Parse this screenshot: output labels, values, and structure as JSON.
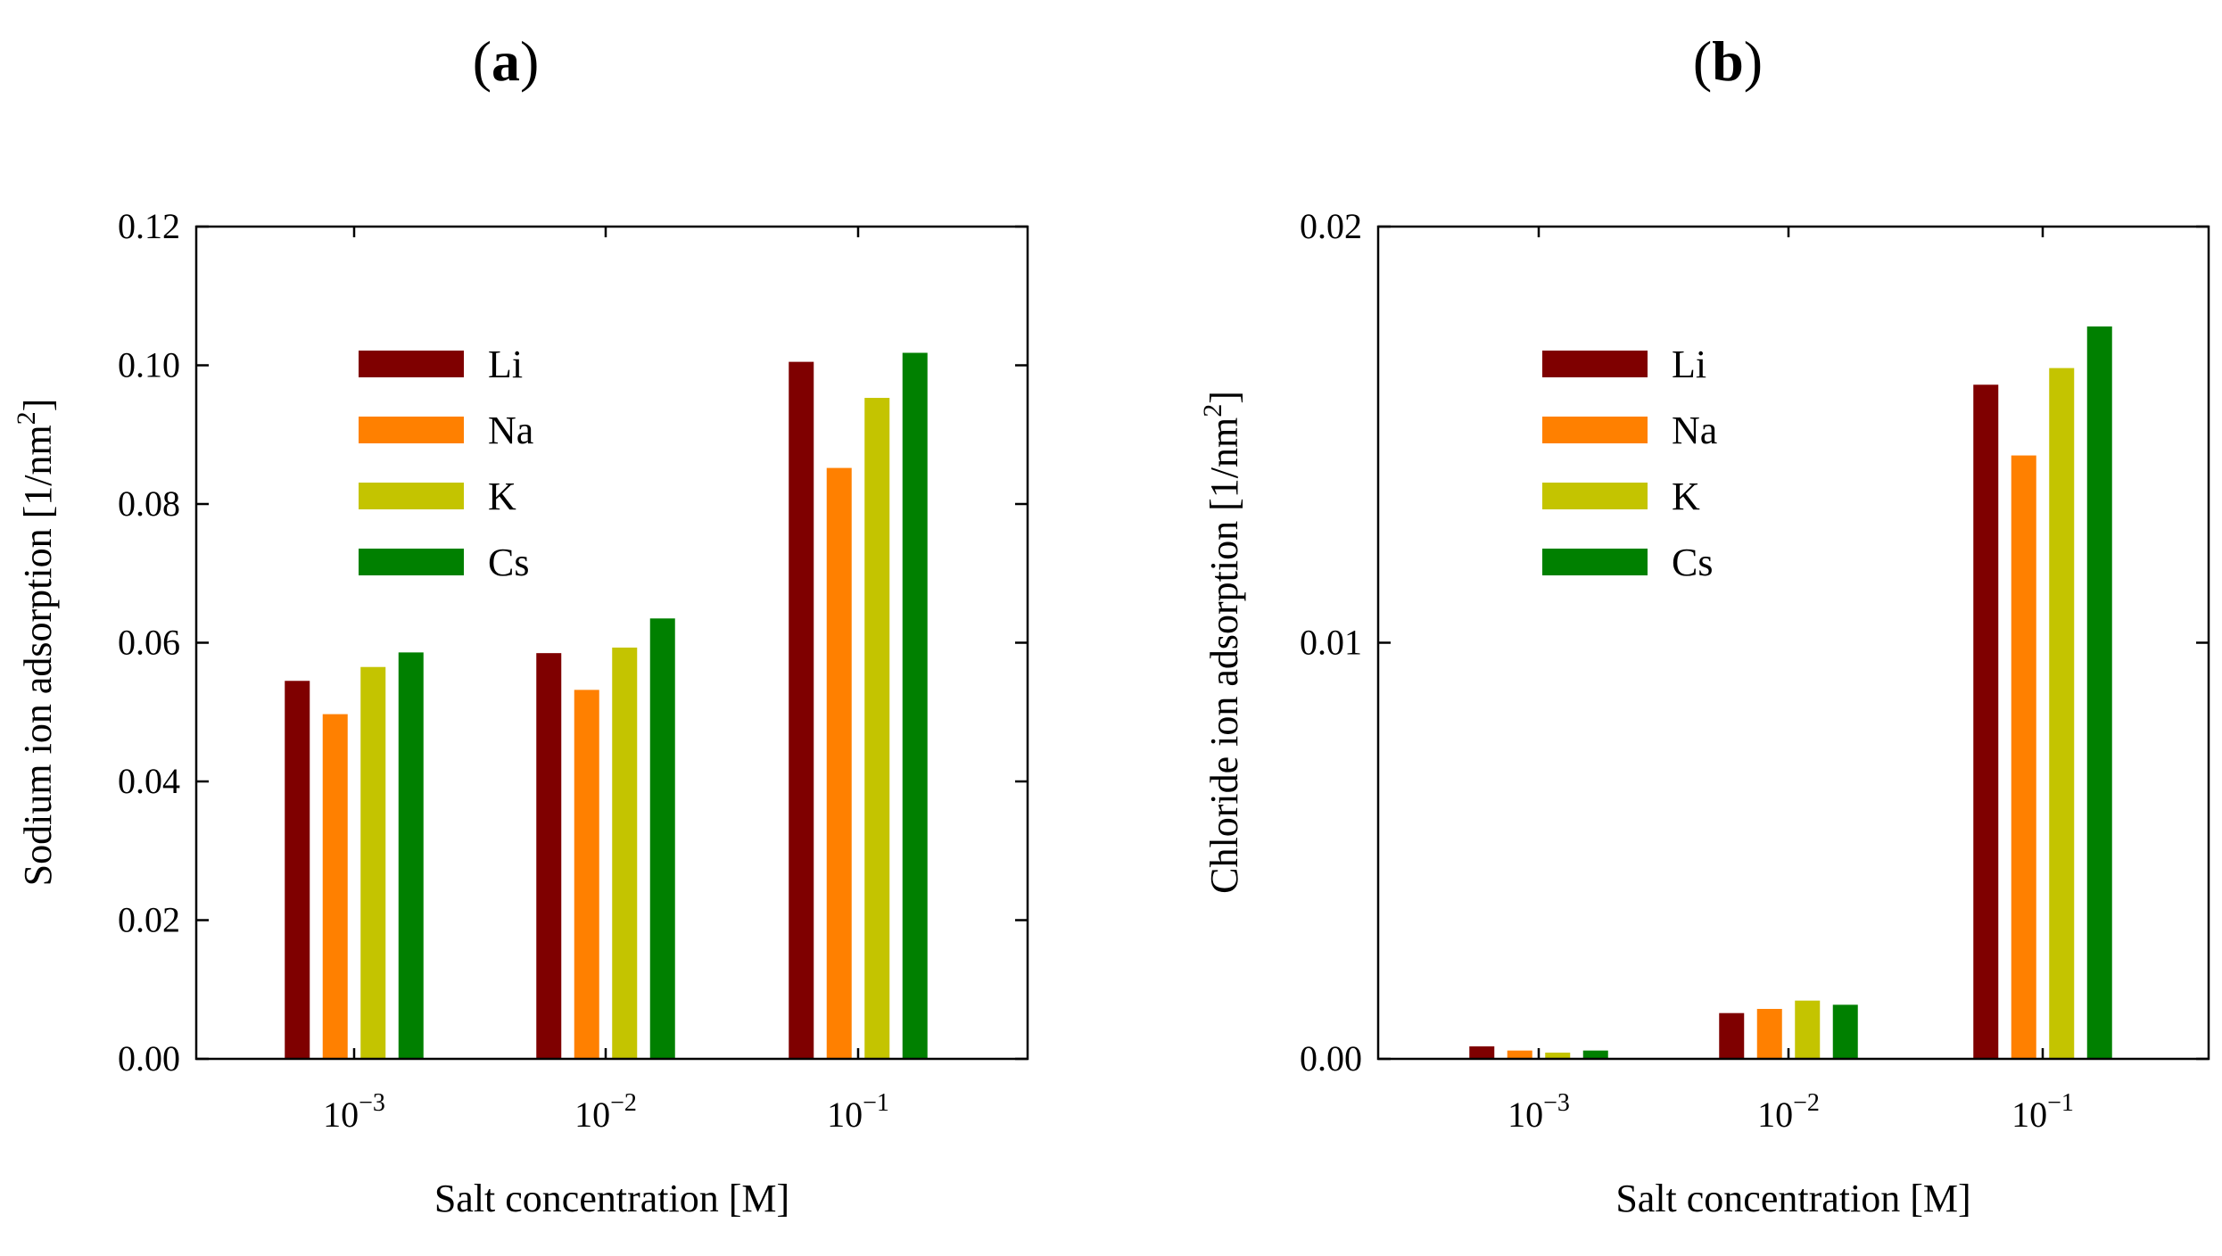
{
  "chart_data": [
    {
      "panel": "a",
      "type": "bar",
      "title": "",
      "xlabel": "Salt concentration [M]",
      "ylabel": "Sodium ion adsorption [1/nm",
      "ylabel_sup": "2",
      "ylabel_end": "]",
      "categories": [
        {
          "base": "10",
          "exp": "−3"
        },
        {
          "base": "10",
          "exp": "−2"
        },
        {
          "base": "10",
          "exp": "−1"
        }
      ],
      "ylim": [
        0,
        0.12
      ],
      "yticks": [
        "0.00",
        "0.02",
        "0.04",
        "0.06",
        "0.08",
        "0.10",
        "0.12"
      ],
      "series": [
        {
          "name": "Li",
          "color": "#7f0000",
          "values": [
            0.0545,
            0.0585,
            0.1005
          ]
        },
        {
          "name": "Na",
          "color": "#ff8000",
          "values": [
            0.0497,
            0.0532,
            0.0852
          ]
        },
        {
          "name": "K",
          "color": "#c4c400",
          "values": [
            0.0565,
            0.0593,
            0.0953
          ]
        },
        {
          "name": "Cs",
          "color": "#008000",
          "values": [
            0.0586,
            0.0635,
            0.1018
          ]
        }
      ],
      "legend": "upper-left"
    },
    {
      "panel": "b",
      "type": "bar",
      "title": "",
      "xlabel": "Salt concentration [M]",
      "ylabel": "Chloride ion adsorption [1/nm",
      "ylabel_sup": "2",
      "ylabel_end": "]",
      "categories": [
        {
          "base": "10",
          "exp": "−3"
        },
        {
          "base": "10",
          "exp": "−2"
        },
        {
          "base": "10",
          "exp": "−1"
        }
      ],
      "ylim": [
        0,
        0.02
      ],
      "yticks": [
        "0.00",
        "0.01",
        "0.02"
      ],
      "series": [
        {
          "name": "Li",
          "color": "#7f0000",
          "values": [
            0.0003,
            0.0011,
            0.0162
          ]
        },
        {
          "name": "Na",
          "color": "#ff8000",
          "values": [
            0.0002,
            0.0012,
            0.0145
          ]
        },
        {
          "name": "K",
          "color": "#c4c400",
          "values": [
            0.00015,
            0.0014,
            0.0166
          ]
        },
        {
          "name": "Cs",
          "color": "#008000",
          "values": [
            0.0002,
            0.0013,
            0.0176
          ]
        }
      ],
      "legend": "upper-left"
    }
  ]
}
